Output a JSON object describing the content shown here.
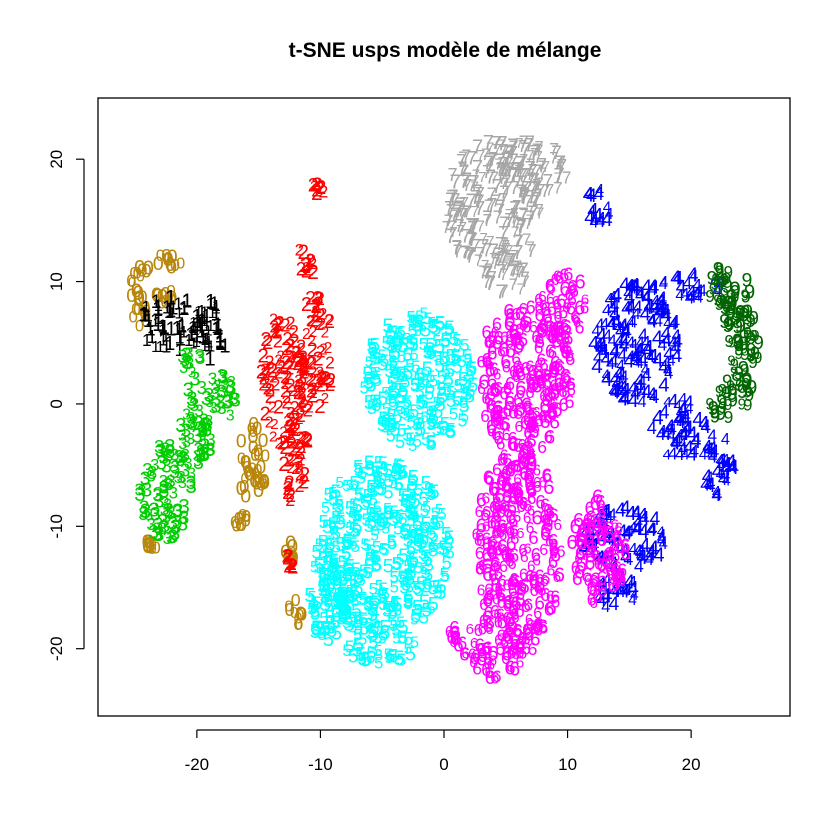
{
  "chart_data": {
    "type": "scatter",
    "title": "t-SNE usps modèle de mélange",
    "xlabel": "",
    "ylabel": "",
    "xlim": [
      -28,
      28
    ],
    "ylim": [
      -25.5,
      25
    ],
    "x_ticks": [
      -20,
      -10,
      0,
      10,
      20
    ],
    "y_ticks": [
      -20,
      -10,
      0,
      10,
      20
    ],
    "x_tick_labels": [
      "-20",
      "-10",
      "0",
      "10",
      "20"
    ],
    "y_tick_labels": [
      "-20",
      "-10",
      "0",
      "10",
      "20"
    ],
    "legend": "none",
    "grid": false,
    "marker": "digit glyphs (0-9) coloured by cluster",
    "series": [
      {
        "label": "0",
        "color": "#B8860B",
        "blobs": [
          [
            -24.5,
            9.0,
            1.0,
            2.8
          ],
          [
            -22.5,
            11.5,
            1.2,
            0.8
          ],
          [
            -15.5,
            -5.0,
            1.2,
            3.5
          ],
          [
            -16.5,
            -9.5,
            0.8,
            0.5
          ],
          [
            -12.5,
            -12.5,
            0.5,
            1.2
          ],
          [
            -12.0,
            -17.0,
            0.6,
            1.2
          ],
          [
            -23.5,
            -11.5,
            0.6,
            0.4
          ],
          [
            -22.5,
            8.8,
            0.8,
            0.6
          ]
        ]
      },
      {
        "label": "1",
        "color": "#000000",
        "blobs": [
          [
            -22.0,
            6.5,
            3.0,
            2.2
          ],
          [
            -19.0,
            6.0,
            1.5,
            2.5
          ]
        ]
      },
      {
        "label": "2",
        "color": "#FF0000",
        "blobs": [
          [
            -13.0,
            2.0,
            1.8,
            5.5
          ],
          [
            -10.5,
            4.0,
            1.5,
            5.0
          ],
          [
            -11.0,
            12.0,
            0.9,
            1.5
          ],
          [
            -10.2,
            17.5,
            0.6,
            0.5
          ],
          [
            -12.0,
            -5.0,
            1.2,
            3.5
          ],
          [
            -12.5,
            -13.0,
            0.3,
            0.8
          ]
        ]
      },
      {
        "label": "3",
        "color": "#00CD00",
        "blobs": [
          [
            -22.5,
            -7.0,
            2.3,
            4.0
          ],
          [
            -20.0,
            -1.5,
            1.5,
            3.5
          ],
          [
            -18.0,
            0.5,
            1.5,
            1.8
          ],
          [
            -20.5,
            3.5,
            0.8,
            1.0
          ]
        ]
      },
      {
        "label": "4",
        "color": "#0000FF",
        "blobs": [
          [
            15.5,
            5.0,
            3.5,
            5.0
          ],
          [
            19.0,
            -2.0,
            2.2,
            2.5
          ],
          [
            22.0,
            -5.0,
            1.5,
            2.5
          ],
          [
            12.5,
            16.0,
            1.2,
            1.5
          ],
          [
            14.5,
            -11.0,
            3.5,
            2.5
          ],
          [
            14.0,
            -15.5,
            2.0,
            1.5
          ],
          [
            20.0,
            9.5,
            2.5,
            1.0
          ]
        ]
      },
      {
        "label": "5",
        "color": "#00FFFF",
        "blobs": [
          [
            -5.0,
            -12.0,
            5.5,
            7.5
          ],
          [
            -2.0,
            2.0,
            4.5,
            5.5
          ],
          [
            -9.5,
            -16.0,
            2.0,
            3.5
          ],
          [
            -5.0,
            -20.0,
            3.0,
            1.2
          ]
        ]
      },
      {
        "label": "6",
        "color": "#FF00FF",
        "blobs": [
          [
            6.0,
            -12.0,
            3.5,
            8.5
          ],
          [
            6.5,
            2.0,
            4.0,
            6.0
          ],
          [
            9.5,
            8.0,
            2.0,
            3.0
          ],
          [
            12.5,
            -12.0,
            2.2,
            4.5
          ],
          [
            4.0,
            -20.0,
            2.5,
            2.5
          ],
          [
            1.0,
            -19.0,
            0.8,
            0.8
          ]
        ]
      },
      {
        "label": "7",
        "color": "#A6A6A6",
        "blobs": [
          [
            4.0,
            16.0,
            4.0,
            5.5
          ],
          [
            7.0,
            19.0,
            3.0,
            2.5
          ],
          [
            5.0,
            10.5,
            2.0,
            1.5
          ]
        ]
      },
      {
        "label": "9",
        "color": "#006400",
        "blobs": [
          [
            24.0,
            4.5,
            1.6,
            5.0
          ],
          [
            23.0,
            9.5,
            1.8,
            1.8
          ],
          [
            22.5,
            0.0,
            1.0,
            1.5
          ]
        ]
      }
    ]
  }
}
